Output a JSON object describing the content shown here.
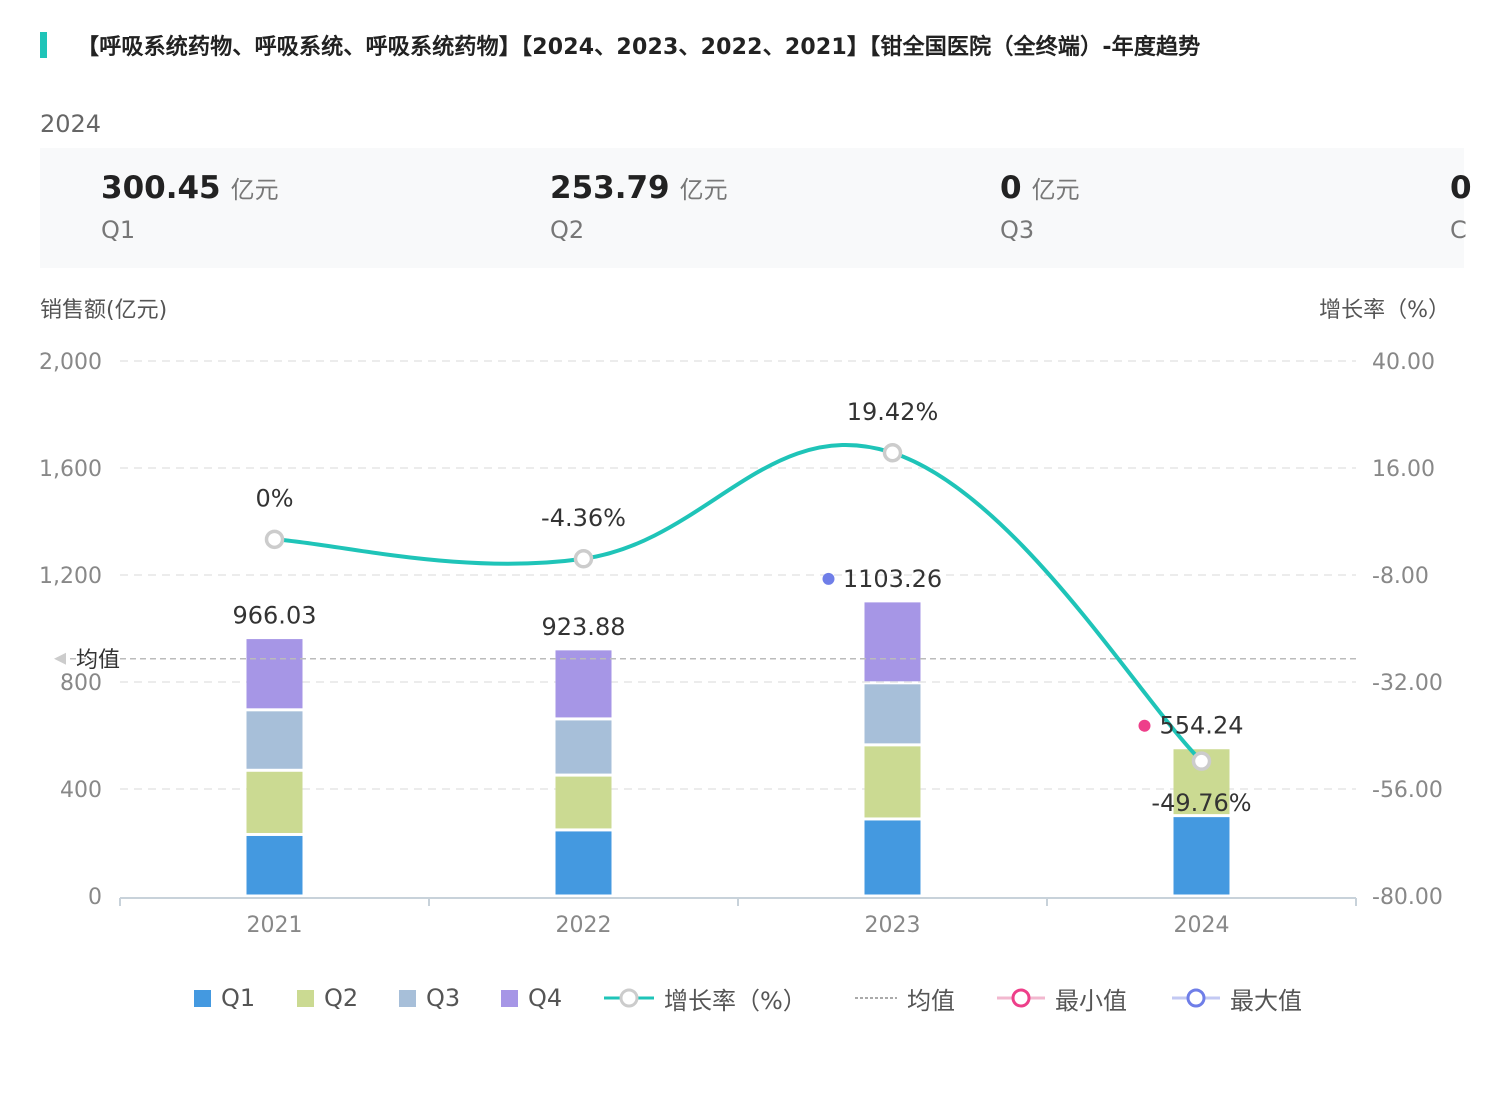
{
  "title": "【呼吸系统药物、呼吸系统、呼吸系统药物】【2024、2023、2022、2021】【钳全国医院（全终端）-年度趋势",
  "selected_year": "2024",
  "stats": [
    {
      "value": "300.45",
      "unit": "亿元",
      "label": "Q1"
    },
    {
      "value": "253.79",
      "unit": "亿元",
      "label": "Q2"
    },
    {
      "value": "0",
      "unit": "亿元",
      "label": "Q3"
    },
    {
      "value": "0",
      "unit": "",
      "label": "C"
    }
  ],
  "colors": {
    "accent": "#1fc4b8",
    "q1": "#4499e0",
    "q2": "#cbda92",
    "q3": "#a7bfd9",
    "q4": "#a696e6",
    "growth_line": "#1fc4b8",
    "min_marker": "#ee3f8a",
    "max_marker": "#6f7ee8",
    "avg_line": "#bbbbbb"
  },
  "chart_data": {
    "type": "bar",
    "stacked": true,
    "categories": [
      "2021",
      "2022",
      "2023",
      "2024"
    ],
    "series": [
      {
        "name": "Q1",
        "values": [
          230,
          247,
          288,
          300.45
        ]
      },
      {
        "name": "Q2",
        "values": [
          240,
          205,
          277,
          253.79
        ]
      },
      {
        "name": "Q3",
        "values": [
          226,
          210,
          232,
          0
        ]
      },
      {
        "name": "Q4",
        "values": [
          270.03,
          261.88,
          306.26,
          0
        ]
      }
    ],
    "totals": [
      966.03,
      923.88,
      1103.26,
      554.24
    ],
    "total_labels": [
      "966.03",
      "923.88",
      "1103.26",
      "554.24"
    ],
    "growth_rate": {
      "name": "增长率（%）",
      "values": [
        0,
        -4.36,
        19.42,
        -49.76
      ],
      "labels": [
        "0%",
        "-4.36%",
        "19.42%",
        "-49.76%"
      ]
    },
    "average": {
      "name": "均值",
      "value": 886.85,
      "label": "均值"
    },
    "min_label": "最小值",
    "max_label": "最大值",
    "y_left": {
      "label": "销售额(亿元)",
      "min": 0,
      "max": 2000,
      "ticks": [
        0,
        400,
        800,
        1200,
        1600,
        2000
      ],
      "tick_labels": [
        "0",
        "400",
        "800",
        "1,200",
        "1,600",
        "2,000"
      ]
    },
    "y_right": {
      "label": "增长率（%）",
      "min": -80,
      "max": 40,
      "ticks": [
        -80,
        -56,
        -32,
        -8,
        16,
        40
      ],
      "tick_labels": [
        "-80.00",
        "-56.00",
        "-32.00",
        "-8.00",
        "16.00",
        "40.00"
      ]
    },
    "grid": true,
    "legend_position": "bottom"
  }
}
